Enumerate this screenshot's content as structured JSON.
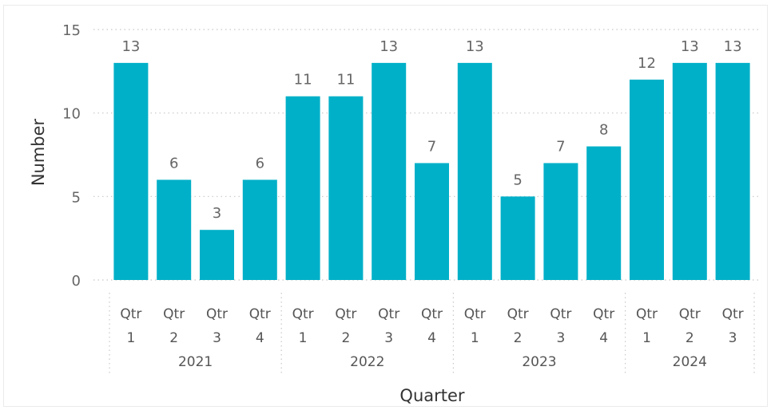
{
  "chart_data": {
    "type": "bar",
    "xlabel": "Quarter",
    "ylabel": "Number",
    "ylim": [
      0,
      15
    ],
    "yticks": [
      "0",
      "5",
      "10",
      "15"
    ],
    "grid": "horizontal dotted",
    "bar_color": "#00B0C8",
    "groups": [
      {
        "year": "2021",
        "quarters": [
          {
            "qtr": "Qtr",
            "num": "1",
            "value": 13
          },
          {
            "qtr": "Qtr",
            "num": "2",
            "value": 6
          },
          {
            "qtr": "Qtr",
            "num": "3",
            "value": 3
          },
          {
            "qtr": "Qtr",
            "num": "4",
            "value": 6
          }
        ]
      },
      {
        "year": "2022",
        "quarters": [
          {
            "qtr": "Qtr",
            "num": "1",
            "value": 11
          },
          {
            "qtr": "Qtr",
            "num": "2",
            "value": 11
          },
          {
            "qtr": "Qtr",
            "num": "3",
            "value": 13
          },
          {
            "qtr": "Qtr",
            "num": "4",
            "value": 7
          }
        ]
      },
      {
        "year": "2023",
        "quarters": [
          {
            "qtr": "Qtr",
            "num": "1",
            "value": 13
          },
          {
            "qtr": "Qtr",
            "num": "2",
            "value": 5
          },
          {
            "qtr": "Qtr",
            "num": "3",
            "value": 7
          },
          {
            "qtr": "Qtr",
            "num": "4",
            "value": 8
          }
        ]
      },
      {
        "year": "2024",
        "quarters": [
          {
            "qtr": "Qtr",
            "num": "1",
            "value": 12
          },
          {
            "qtr": "Qtr",
            "num": "2",
            "value": 13
          },
          {
            "qtr": "Qtr",
            "num": "3",
            "value": 13
          }
        ]
      }
    ]
  }
}
